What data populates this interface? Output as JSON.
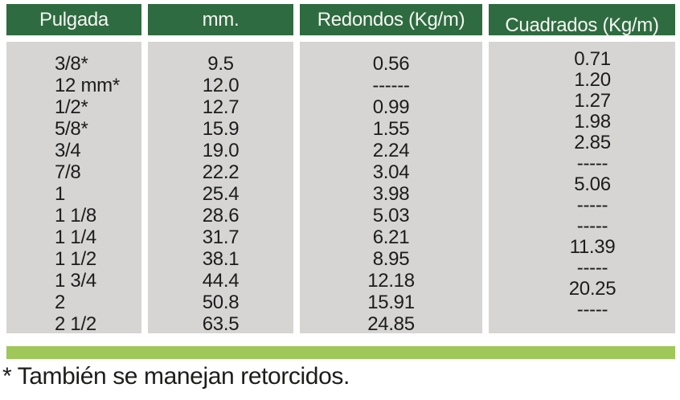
{
  "colors": {
    "header_bg": "#2f6b40",
    "header_text": "#f4f7f2",
    "body_bg": "#d6d5d3",
    "body_text": "#1c1c1c",
    "accent_bar": "#9fc75a",
    "background_pattern": "#ecf1df"
  },
  "table": {
    "columns": [
      {
        "key": "pulgada",
        "label": "Pulgada"
      },
      {
        "key": "mm",
        "label": "mm."
      },
      {
        "key": "redondos",
        "label": "Redondos (Kg/m)"
      },
      {
        "key": "cuadrados",
        "label": "Cuadrados (Kg/m)"
      }
    ],
    "rows": [
      {
        "pulgada": "3/8*",
        "mm": "9.5",
        "redondos": "0.56",
        "cuadrados": "0.71"
      },
      {
        "pulgada": "12 mm*",
        "mm": "12.0",
        "redondos": "------",
        "cuadrados": "1.20"
      },
      {
        "pulgada": "1/2*",
        "mm": "12.7",
        "redondos": "0.99",
        "cuadrados": "1.27"
      },
      {
        "pulgada": "5/8*",
        "mm": "15.9",
        "redondos": "1.55",
        "cuadrados": "1.98"
      },
      {
        "pulgada": "3/4",
        "mm": "19.0",
        "redondos": "2.24",
        "cuadrados": "2.85"
      },
      {
        "pulgada": "7/8",
        "mm": "22.2",
        "redondos": "3.04",
        "cuadrados": "-----"
      },
      {
        "pulgada": "1",
        "mm": "25.4",
        "redondos": "3.98",
        "cuadrados": "5.06"
      },
      {
        "pulgada": "1 1/8",
        "mm": "28.6",
        "redondos": "5.03",
        "cuadrados": "-----"
      },
      {
        "pulgada": "1 1/4",
        "mm": "31.7",
        "redondos": "6.21",
        "cuadrados": "-----"
      },
      {
        "pulgada": "1 1/2",
        "mm": "38.1",
        "redondos": "8.95",
        "cuadrados": "11.39"
      },
      {
        "pulgada": "1 3/4",
        "mm": "44.4",
        "redondos": "12.18",
        "cuadrados": "-----"
      },
      {
        "pulgada": "2",
        "mm": "50.8",
        "redondos": "15.91",
        "cuadrados": "20.25"
      },
      {
        "pulgada": "2 1/2",
        "mm": "63.5",
        "redondos": "24.85",
        "cuadrados": "-----"
      }
    ]
  },
  "footnote": "* También se manejan retorcidos."
}
